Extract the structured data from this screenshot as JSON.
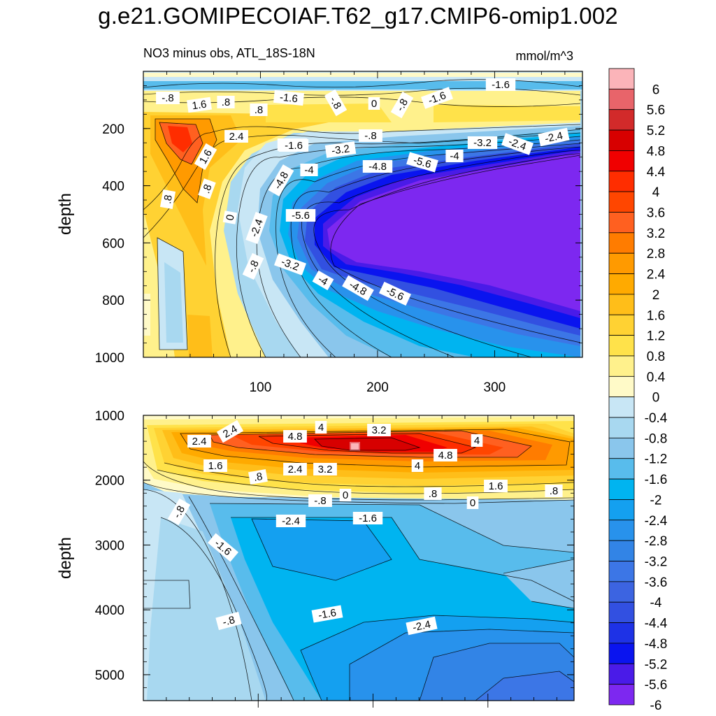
{
  "title": "g.e21.GOMIPECOIAF.T62_g17.CMIP6-omip1.002",
  "chart_data": {
    "type": "heatmap",
    "variable_label": "NO3 minus obs, ATL_18S-18N",
    "units_label": "mmol/m^3",
    "colorbar": {
      "levels": [
        "6",
        "5.6",
        "5.2",
        "4.8",
        "4.4",
        "4",
        "3.6",
        "3.2",
        "2.8",
        "2.4",
        "2",
        "1.6",
        "1.2",
        "0.8",
        "0.4",
        "0",
        "-0.4",
        "-0.8",
        "-1.2",
        "-1.6",
        "-2",
        "-2.4",
        "-2.8",
        "-3.2",
        "-3.6",
        "-4",
        "-4.4",
        "-4.8",
        "-5.2",
        "-5.6",
        "-6"
      ],
      "colors": [
        "#fbb4b9",
        "#e8646a",
        "#d22a2a",
        "#d70000",
        "#f00000",
        "#ff2d00",
        "#ff4600",
        "#ff6020",
        "#ff7c00",
        "#ff9a00",
        "#ffaa00",
        "#ffbe19",
        "#ffd233",
        "#ffe24a",
        "#fff18c",
        "#fffac8",
        "#c8e6f5",
        "#a8d8f0",
        "#8ac6ec",
        "#58bcec",
        "#00b4f0",
        "#14a0f0",
        "#2892ec",
        "#3284e6",
        "#3c76e6",
        "#3c64e1",
        "#3250e1",
        "#1e32e6",
        "#0a14ef",
        "#4a1be8",
        "#7d28f0"
      ]
    },
    "panels": [
      {
        "name": "upper",
        "ylabel": "depth",
        "ylim": [
          1000,
          0
        ],
        "xlim": [
          0,
          375
        ],
        "yticks": [
          "200",
          "400",
          "600",
          "800",
          "1000"
        ],
        "xticks": [
          "100",
          "200",
          "300"
        ],
        "contour_labels": [
          "-.8",
          "1.6",
          ".8",
          ".8",
          "-1.6",
          "-.8",
          "0",
          "-.8",
          "-1.6",
          "-1.6",
          "2.4",
          "1.6",
          ".8",
          ".8",
          "-1.6",
          "-.8",
          "-1.6",
          "-3.2",
          "-4.8",
          "-4",
          "-5.6",
          "-4",
          "-3.2",
          "-2.4",
          "-2.4",
          "-4.8",
          "-5.6",
          "0",
          "-2.4",
          "-.8",
          "-3.2",
          "-4",
          "-4.8",
          "-5.6"
        ]
      },
      {
        "name": "lower",
        "ylabel": "depth",
        "ylim": [
          5400,
          1000
        ],
        "xlim": [
          0,
          375
        ],
        "yticks": [
          "1000",
          "2000",
          "3000",
          "4000",
          "5000"
        ],
        "contour_labels": [
          "2.4",
          "2.4",
          "4.8",
          "4",
          "3.2",
          "4",
          "4.8",
          "1.6",
          ".8",
          "2.4",
          "3.2",
          "4",
          "-.8",
          "0",
          ".8",
          "1.6",
          ".8",
          "0",
          "-.8",
          "-2.4",
          "-1.6",
          "-1.6",
          "-.8",
          "-1.6",
          "-2.4"
        ]
      }
    ]
  }
}
